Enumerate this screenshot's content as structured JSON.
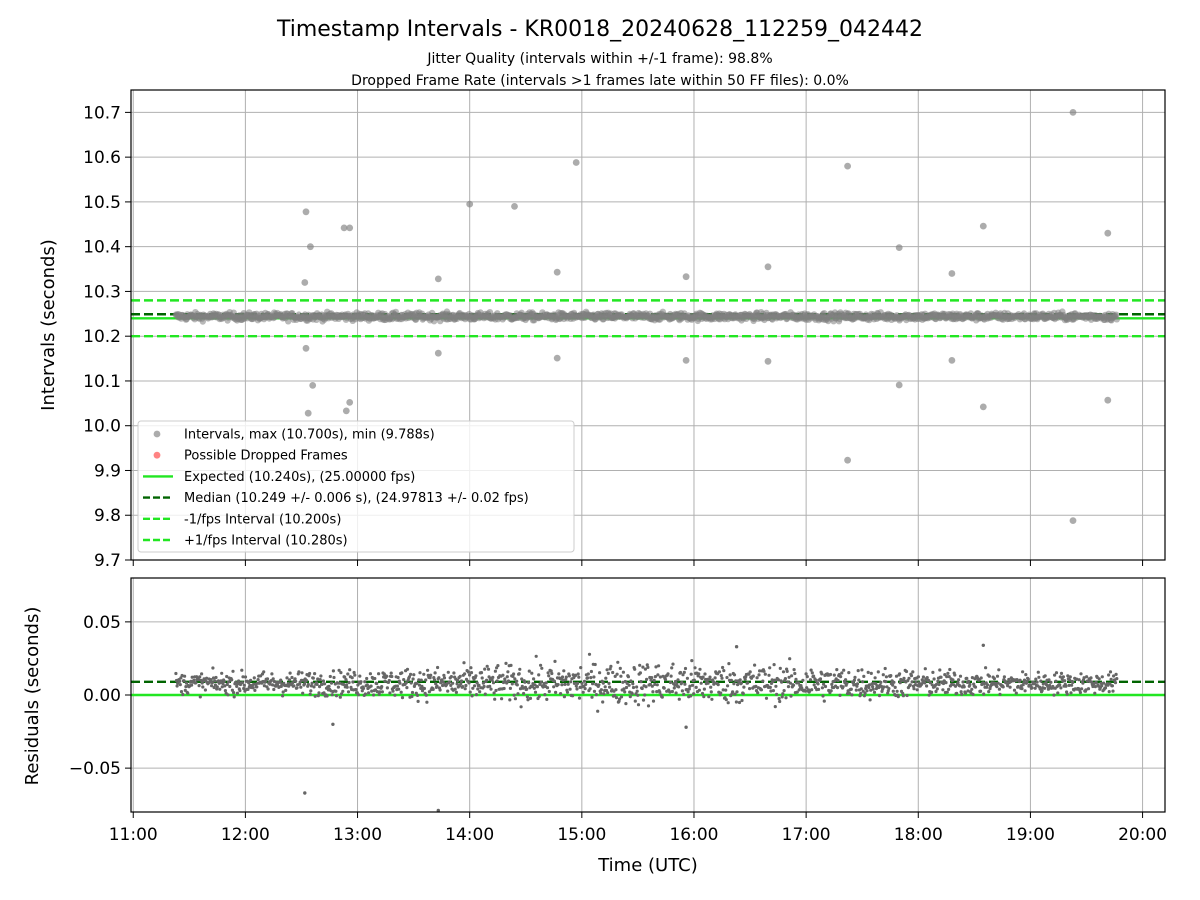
{
  "chart_data": [
    {
      "type": "scatter",
      "title": "Timestamp Intervals - KR0018_20240628_112259_042442",
      "subtitles": [
        "Jitter Quality (intervals within +/-1 frame): 98.8%",
        "Dropped Frame Rate (intervals >1 frames late within 50 FF files): 0.0%"
      ],
      "xlabel": "",
      "ylabel": "Intervals (seconds)",
      "x_unit": "hours UTC",
      "xlim": [
        10.98,
        20.2
      ],
      "ylim": [
        9.7,
        10.75
      ],
      "yticks": [
        9.7,
        9.8,
        9.9,
        10.0,
        10.1,
        10.2,
        10.3,
        10.4,
        10.5,
        10.6,
        10.7
      ],
      "ytick_labels": [
        "9.7",
        "9.8",
        "9.9",
        "10.0",
        "10.1",
        "10.2",
        "10.3",
        "10.4",
        "10.5",
        "10.6",
        "10.7"
      ],
      "grid": true,
      "legend_position": "lower-left",
      "series": [
        {
          "name": "Intervals, max (10.700s), min (9.788s)",
          "kind": "scatter",
          "color": "#808080",
          "dense_band": {
            "x_start": 11.38,
            "x_end": 19.77,
            "center": 10.244,
            "spread": 0.012
          },
          "points": [
            [
              12.54,
              10.478
            ],
            [
              12.58,
              10.4
            ],
            [
              12.53,
              10.32
            ],
            [
              12.54,
              10.173
            ],
            [
              12.6,
              10.09
            ],
            [
              12.56,
              10.028
            ],
            [
              12.88,
              10.442
            ],
            [
              12.93,
              10.442
            ],
            [
              12.9,
              10.033
            ],
            [
              12.93,
              10.052
            ],
            [
              13.72,
              10.328
            ],
            [
              13.72,
              10.162
            ],
            [
              14.0,
              10.495
            ],
            [
              14.4,
              10.49
            ],
            [
              14.78,
              10.343
            ],
            [
              14.78,
              10.151
            ],
            [
              14.95,
              10.588
            ],
            [
              15.93,
              10.333
            ],
            [
              15.93,
              10.146
            ],
            [
              16.66,
              10.355
            ],
            [
              16.66,
              10.144
            ],
            [
              17.37,
              10.58
            ],
            [
              17.37,
              9.923
            ],
            [
              17.83,
              10.398
            ],
            [
              17.83,
              10.091
            ],
            [
              18.3,
              10.34
            ],
            [
              18.3,
              10.146
            ],
            [
              18.58,
              10.446
            ],
            [
              18.58,
              10.042
            ],
            [
              19.38,
              10.7
            ],
            [
              19.38,
              9.788
            ],
            [
              19.69,
              10.43
            ],
            [
              19.69,
              10.057
            ]
          ]
        },
        {
          "name": "Possible Dropped Frames",
          "kind": "scatter",
          "color": "#ff4040",
          "points": []
        },
        {
          "name": "Expected (10.240s), (25.00000 fps)",
          "kind": "hline",
          "y": 10.24,
          "color": "#22e622",
          "style": "solid"
        },
        {
          "name": "Median (10.249 +/- 0.006 s), (24.97813 +/- 0.02 fps)",
          "kind": "hline",
          "y": 10.249,
          "color": "#006400",
          "style": "dashed"
        },
        {
          "name": "-1/fps Interval (10.200s)",
          "kind": "hline",
          "y": 10.2,
          "color": "#22e622",
          "style": "dashed"
        },
        {
          "name": "+1/fps Interval (10.280s)",
          "kind": "hline",
          "y": 10.28,
          "color": "#22e622",
          "style": "dashed"
        }
      ]
    },
    {
      "type": "scatter",
      "title": "",
      "xlabel": "Time (UTC)",
      "ylabel": "Residuals (seconds)",
      "x_unit": "hours UTC",
      "xlim": [
        10.98,
        20.2
      ],
      "xticks": [
        11,
        12,
        13,
        14,
        15,
        16,
        17,
        18,
        19,
        20
      ],
      "xtick_labels": [
        "11:00",
        "12:00",
        "13:00",
        "14:00",
        "15:00",
        "16:00",
        "17:00",
        "18:00",
        "19:00",
        "20:00"
      ],
      "ylim": [
        -0.08,
        0.08
      ],
      "yticks": [
        -0.05,
        0.0,
        0.05
      ],
      "ytick_labels": [
        "−0.05",
        "0.00",
        "0.05"
      ],
      "grid": true,
      "series": [
        {
          "name": "Residuals",
          "kind": "scatter",
          "color": "#666666",
          "dense_band": {
            "x_start": 11.38,
            "x_end": 19.77,
            "center": 0.008,
            "spread_edges": 0.006,
            "spread_middle": 0.013
          },
          "points": [
            [
              12.53,
              -0.067
            ],
            [
              13.72,
              -0.079
            ],
            [
              16.38,
              0.033
            ],
            [
              18.58,
              0.034
            ],
            [
              12.78,
              -0.02
            ],
            [
              15.93,
              -0.022
            ]
          ]
        },
        {
          "name": "Expected",
          "kind": "hline",
          "y": 0.0,
          "color": "#22e622",
          "style": "solid"
        },
        {
          "name": "Median",
          "kind": "hline",
          "y": 0.009,
          "color": "#006400",
          "style": "dashed"
        }
      ]
    }
  ]
}
